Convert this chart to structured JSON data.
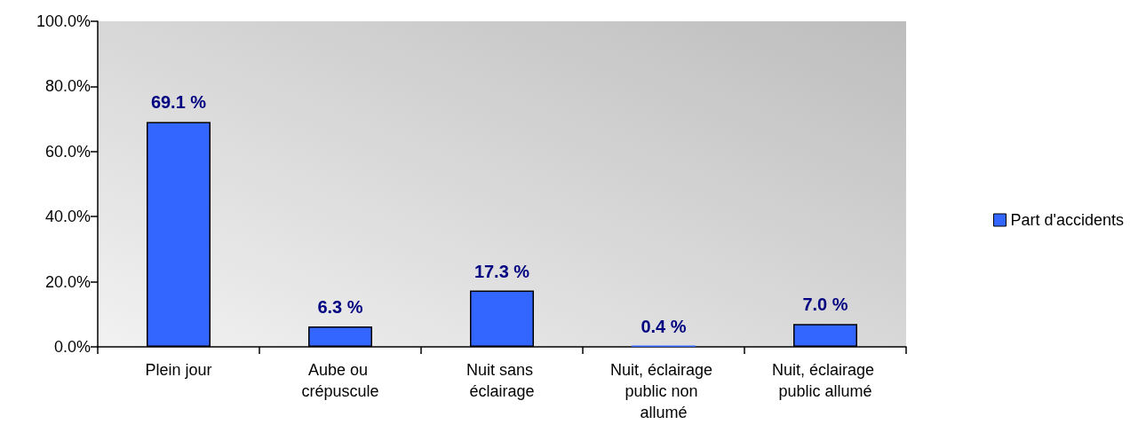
{
  "chart_data": {
    "type": "bar",
    "categories": [
      "Plein jour",
      "Aube ou crépuscule",
      "Nuit sans éclairage",
      "Nuit, éclairage public non allumé",
      "Nuit, éclairage public allumé"
    ],
    "series": [
      {
        "name": "Part d'accidents",
        "color": "#3366ff",
        "values": [
          69.1,
          6.3,
          17.3,
          0.4,
          7.0
        ],
        "value_labels": [
          "69.1 %",
          "6.3 %",
          "17.3 %",
          "0.4 %",
          "7.0 %"
        ]
      }
    ],
    "ylim": [
      0,
      100
    ],
    "yticks": [
      {
        "value": 0,
        "label": "0.0%"
      },
      {
        "value": 20,
        "label": "20.0%"
      },
      {
        "value": 40,
        "label": "40.0%"
      },
      {
        "value": 60,
        "label": "60.0%"
      },
      {
        "value": 80,
        "label": "80.0%"
      },
      {
        "value": 100,
        "label": "100.0%"
      }
    ],
    "grid": false,
    "legend": "right"
  }
}
